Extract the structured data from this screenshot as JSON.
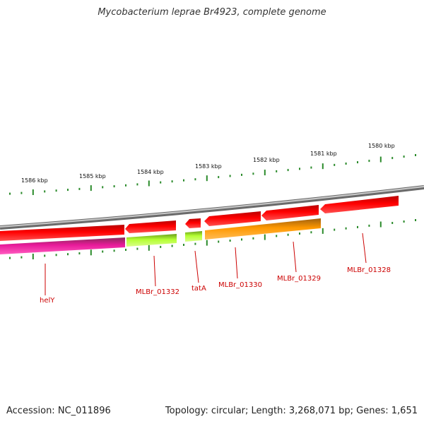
{
  "title": "Mycobacterium leprae Br4923, complete genome",
  "footer": {
    "accession": "Accession: NC_011896",
    "summary": "Topology: circular; Length: 3,268,071 bp; Genes: 1,651"
  },
  "scale_ticks": [
    "1586 kbp",
    "1585 kbp",
    "1584 kbp",
    "1583 kbp",
    "1582 kbp",
    "1581 kbp",
    "1580 kbp"
  ],
  "genes": [
    {
      "label": "helY",
      "color": "#e01fa0",
      "strand": "reverse-lower"
    },
    {
      "label": "MLBr_01332",
      "color": "#b5ff33",
      "strand": "reverse-lower"
    },
    {
      "label": "tatA",
      "color": "#b5ff33",
      "strand": "reverse-lower"
    },
    {
      "label": "MLBr_01330",
      "color": "#ff9900",
      "strand": "reverse-lower"
    },
    {
      "label": "MLBr_01329",
      "color": "#ff0000",
      "strand": "forward-upper"
    },
    {
      "label": "MLBr_01328",
      "color": "#ff0000",
      "strand": "forward-upper"
    }
  ],
  "colors": {
    "backbone": "#8c8c8c",
    "cds": "#ff0000",
    "tick": "#2a8a2a",
    "label": "#cc0000"
  }
}
